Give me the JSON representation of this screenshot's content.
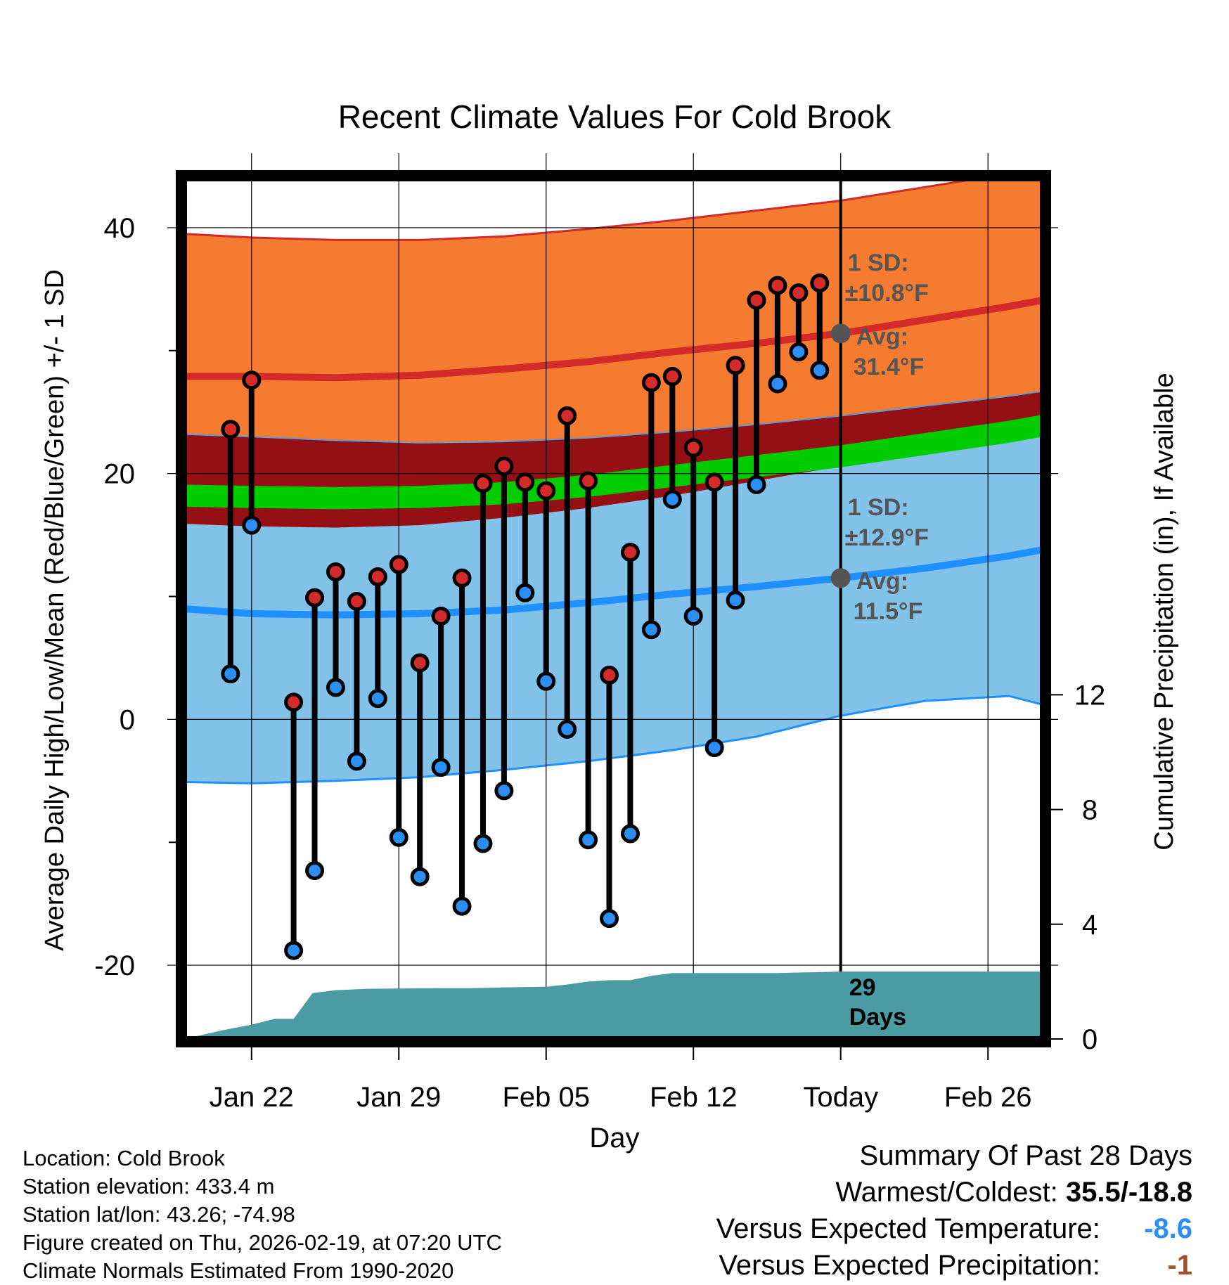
{
  "chart_data": {
    "type": "line",
    "title": "Recent Climate Values For Cold Brook",
    "xlabel": "Day",
    "ylabel": "Average Daily High/Low/Mean (Red/Blue/Green) +/- 1 SD",
    "y2label": "Cumulative Precipitation (in), If Available",
    "x_ticks": [
      "Jan 22",
      "Jan 29",
      "Feb 05",
      "Feb 12",
      "Today",
      "Feb 26"
    ],
    "x_tick_days": [
      -28,
      -21,
      -14,
      -7,
      0,
      7
    ],
    "xlim_days": [
      -31.2,
      9.6
    ],
    "ylim": [
      -26,
      44
    ],
    "y_ticks": [
      -20,
      0,
      20,
      40
    ],
    "y_minor_ticks": [
      -10,
      10,
      30
    ],
    "y2lim": [
      0,
      30
    ],
    "y2_ticks": [
      0,
      4,
      8,
      12
    ],
    "normal_high": {
      "days": [
        -31.2,
        -28,
        -24,
        -20,
        -16,
        -12,
        -8,
        -4,
        0,
        4,
        8,
        9.6
      ],
      "mean": [
        27.9,
        27.9,
        27.8,
        28.0,
        28.5,
        29.1,
        29.9,
        30.6,
        31.4,
        32.5,
        33.6,
        34.1
      ],
      "upper": [
        39.5,
        39.2,
        39.0,
        39.0,
        39.3,
        39.9,
        40.6,
        41.4,
        42.2,
        43.3,
        44.4,
        44.9
      ],
      "lower": [
        23.2,
        23.0,
        22.7,
        22.5,
        22.6,
        22.9,
        23.4,
        24.0,
        24.7,
        25.5,
        26.3,
        26.7
      ]
    },
    "normal_mean": {
      "days": [
        -31.2,
        -28,
        -24,
        -20,
        -16,
        -12,
        -8,
        -4,
        0,
        4,
        8,
        9.6
      ],
      "mean": [
        18.2,
        18.1,
        18.0,
        18.1,
        18.4,
        19.0,
        19.8,
        20.6,
        21.4,
        22.4,
        23.4,
        23.9
      ],
      "upper": [
        19.1,
        19.0,
        18.9,
        19.0,
        19.3,
        19.9,
        20.7,
        21.5,
        22.3,
        23.3,
        24.3,
        24.8
      ],
      "lower": [
        17.3,
        17.2,
        17.1,
        17.2,
        17.5,
        18.1,
        18.9,
        19.7,
        20.5,
        21.5,
        22.5,
        23.0
      ]
    },
    "normal_low": {
      "days": [
        -31.2,
        -28,
        -24,
        -20,
        -16,
        -12,
        -8,
        -4,
        0,
        4,
        8,
        9.6
      ],
      "mean": [
        9.0,
        8.6,
        8.5,
        8.6,
        8.9,
        9.5,
        10.2,
        10.8,
        11.5,
        12.3,
        13.3,
        13.8
      ],
      "upper": [
        15.9,
        15.7,
        15.6,
        15.8,
        16.4,
        17.2,
        18.2,
        19.4,
        20.6,
        21.9,
        23.2,
        23.7
      ],
      "lower": [
        -5.1,
        -5.2,
        -5.0,
        -4.7,
        -4.1,
        -3.4,
        -2.5,
        -1.4,
        0.3,
        1.5,
        1.9,
        1.2
      ]
    },
    "series": [
      {
        "name": "Daily High",
        "color": "#d42a2a",
        "days": [
          -29,
          -28,
          -26,
          -25,
          -24,
          -23,
          -22,
          -21,
          -20,
          -19,
          -18,
          -17,
          -16,
          -15,
          -14,
          -13,
          -12,
          -11,
          -10,
          -9,
          -8,
          -7,
          -6,
          -5,
          -4,
          -3,
          -2,
          -1
        ],
        "values": [
          23.6,
          27.6,
          1.4,
          9.9,
          12.0,
          9.6,
          11.6,
          12.6,
          4.6,
          8.4,
          11.5,
          19.2,
          20.6,
          19.3,
          18.6,
          24.7,
          19.4,
          3.6,
          13.6,
          27.4,
          27.9,
          22.1,
          19.3,
          28.8,
          34.1,
          35.3,
          34.7,
          35.5
        ]
      },
      {
        "name": "Daily Low",
        "color": "#2a8ef2",
        "days": [
          -29,
          -28,
          -26,
          -25,
          -24,
          -23,
          -22,
          -21,
          -20,
          -19,
          -18,
          -17,
          -16,
          -15,
          -14,
          -13,
          -12,
          -11,
          -10,
          -9,
          -8,
          -7,
          -6,
          -5,
          -4,
          -3,
          -2,
          -1
        ],
        "values": [
          3.7,
          15.8,
          -18.8,
          -12.3,
          2.6,
          -3.4,
          1.7,
          -9.6,
          -12.8,
          -3.9,
          -15.2,
          -10.1,
          -5.8,
          10.3,
          3.1,
          -0.8,
          -9.8,
          -16.2,
          -9.3,
          7.3,
          17.9,
          8.4,
          -2.3,
          9.7,
          19.1,
          27.3,
          29.9,
          28.4
        ]
      }
    ],
    "precip": {
      "days": [
        -31.2,
        -29.4,
        -28,
        -26.9,
        -26,
        -25.1,
        -24,
        -22.5,
        -21,
        -19.2,
        -17.5,
        -16,
        -14,
        -13,
        -12,
        -11,
        -10,
        -9,
        -8,
        -6,
        -3,
        0,
        9.6
      ],
      "values": [
        0,
        0.3,
        0.5,
        0.7,
        0.7,
        1.6,
        1.7,
        1.75,
        1.76,
        1.77,
        1.77,
        1.8,
        1.82,
        1.9,
        2.0,
        2.05,
        2.05,
        2.2,
        2.3,
        2.3,
        2.3,
        2.35,
        2.35
      ]
    },
    "today_annotations": {
      "high_sd": "1 SD:",
      "high_sd_value": "±10.8°F",
      "high_avg": "Avg:",
      "high_avg_value": "31.4°F",
      "high_avg_point": 31.4,
      "low_sd": "1 SD:",
      "low_sd_value": "±12.9°F",
      "low_avg": "Avg:",
      "low_avg_value": "11.5°F",
      "low_avg_point": 11.5,
      "days_count": "29",
      "days_label": "Days"
    },
    "colors": {
      "high_band": "#f47b30",
      "high_line": "#d42a2a",
      "mean_band": "#941014",
      "mean_line": "#00cc00",
      "low_band": "#82c1e8",
      "low_line": "#1e90ff",
      "precip": "#4a9ba3",
      "annotation": "#555555"
    }
  },
  "info": {
    "location": "Location: Cold Brook",
    "elevation": "Station elevation: 433.4 m",
    "latlon": "Station lat/lon: 43.26; -74.98",
    "created": "Figure created on Thu, 2026-02-19, at 07:20 UTC",
    "normals": "Climate Normals Estimated From 1990-2020"
  },
  "summary": {
    "title": "Summary Of Past 28 Days",
    "warm_cold_label": "Warmest/Coldest:",
    "warm_cold_value": "35.5/-18.8",
    "temp_label": "Versus Expected Temperature:",
    "temp_value": "-8.6",
    "temp_color": "#2a8ef2",
    "precip_label": "Versus Expected Precipitation:",
    "precip_value": "-1",
    "precip_color": "#a0522d"
  }
}
